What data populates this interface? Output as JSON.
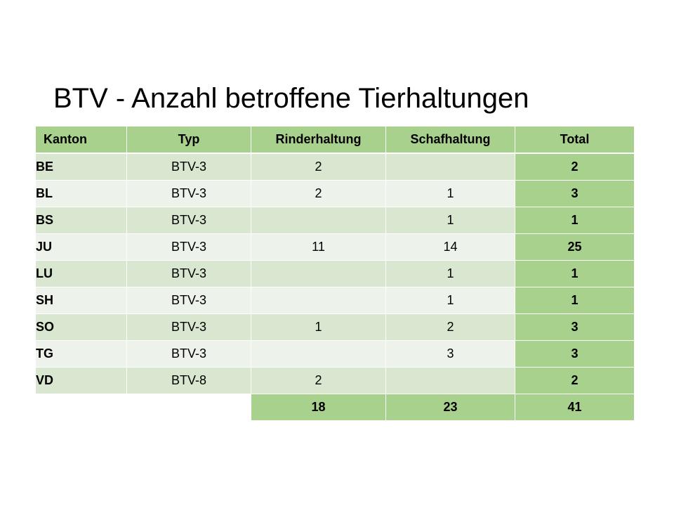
{
  "slide": {
    "title": "BTV - Anzahl betroffene Tierhaltungen"
  },
  "table": {
    "headers": [
      "Kanton",
      "Typ",
      "Rinderhaltung",
      "Schafhaltung",
      "Total"
    ],
    "rows": [
      {
        "kanton": "BE",
        "typ": "BTV-3",
        "rinder": "2",
        "schafe": "",
        "total": "2"
      },
      {
        "kanton": "BL",
        "typ": "BTV-3",
        "rinder": "2",
        "schafe": "1",
        "total": "3"
      },
      {
        "kanton": "BS",
        "typ": "BTV-3",
        "rinder": "",
        "schafe": "1",
        "total": "1"
      },
      {
        "kanton": "JU",
        "typ": "BTV-3",
        "rinder": "11",
        "schafe": "14",
        "total": "25"
      },
      {
        "kanton": "LU",
        "typ": "BTV-3",
        "rinder": "",
        "schafe": "1",
        "total": "1"
      },
      {
        "kanton": "SH",
        "typ": "BTV-3",
        "rinder": "",
        "schafe": "1",
        "total": "1"
      },
      {
        "kanton": "SO",
        "typ": "BTV-3",
        "rinder": "1",
        "schafe": "2",
        "total": "3"
      },
      {
        "kanton": "TG",
        "typ": "BTV-3",
        "rinder": "",
        "schafe": "3",
        "total": "3"
      },
      {
        "kanton": "VD",
        "typ": "BTV-8",
        "rinder": "2",
        "schafe": "",
        "total": "2"
      }
    ],
    "sums": {
      "rinder": "18",
      "schafe": "23",
      "total": "41"
    }
  },
  "colors": {
    "header_green": "#a9d18e",
    "row_band_dark": "#d9e6d0",
    "row_band_light": "#edf2ea"
  }
}
